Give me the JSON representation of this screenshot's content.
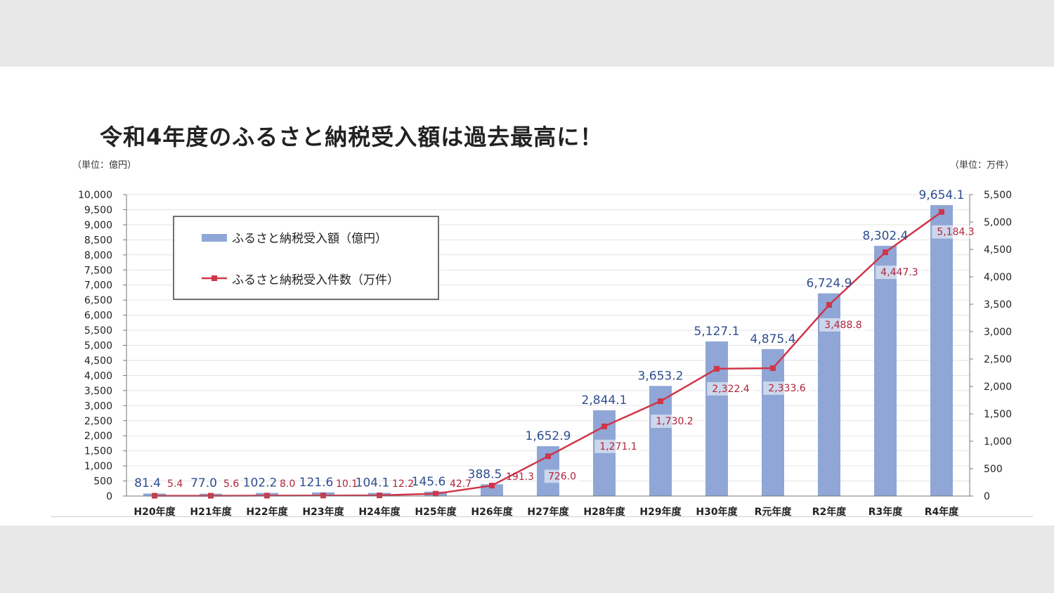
{
  "title": "令和4年度のふるさと納税受入額は過去最高に！",
  "chart_data": {
    "type": "bar",
    "title": "令和4年度のふるさと納税受入額は過去最高に！",
    "unit_left": "（単位：億円）",
    "unit_right": "（単位：万件）",
    "categories": [
      "H20年度",
      "H21年度",
      "H22年度",
      "H23年度",
      "H24年度",
      "H25年度",
      "H26年度",
      "H27年度",
      "H28年度",
      "H29年度",
      "H30年度",
      "R元年度",
      "R2年度",
      "R3年度",
      "R4年度"
    ],
    "series": [
      {
        "name": "ふるさと納税受入額（億円）",
        "type": "bar",
        "axis": "left",
        "color": "#8fa6d6",
        "label_color": "#2f4f8f",
        "values": [
          81.4,
          77.0,
          102.2,
          121.6,
          104.1,
          145.6,
          388.5,
          1652.9,
          2844.1,
          3653.2,
          5127.1,
          4875.4,
          6724.9,
          8302.4,
          9654.1
        ],
        "labels": [
          "81.4",
          "77.0",
          "102.2",
          "121.6",
          "104.1",
          "145.6",
          "388.5",
          "1,652.9",
          "2,844.1",
          "3,653.2",
          "5,127.1",
          "4,875.4",
          "6,724.9",
          "8,302.4",
          "9,654.1"
        ]
      },
      {
        "name": "ふるさと納税受入件数（万件）",
        "type": "line",
        "axis": "right",
        "color": "#d0354a",
        "label_color": "#b0233a",
        "values": [
          5.4,
          5.6,
          8.0,
          10.1,
          12.2,
          42.7,
          191.3,
          726.0,
          1271.1,
          1730.2,
          2322.4,
          2333.6,
          3488.8,
          4447.3,
          5184.3
        ],
        "labels": [
          "5.4",
          "5.6",
          "8.0",
          "10.1",
          "12.2",
          "42.7",
          "191.3",
          "726.0",
          "1,271.1",
          "1,730.2",
          "2,322.4",
          "2,333.6",
          "3,488.8",
          "4,447.3",
          "5,184.3"
        ]
      }
    ],
    "y_left": {
      "min": 0,
      "max": 10000,
      "step": 500,
      "tick_labels": [
        "0",
        "500",
        "1,000",
        "1,500",
        "2,000",
        "2,500",
        "3,000",
        "3,500",
        "4,000",
        "4,500",
        "5,000",
        "5,500",
        "6,000",
        "6,500",
        "7,000",
        "7,500",
        "8,000",
        "8,500",
        "9,000",
        "9,500",
        "10,000"
      ]
    },
    "y_right": {
      "min": 0,
      "max": 5500,
      "step": 500,
      "tick_labels": [
        "0",
        "500",
        "1,000",
        "1,500",
        "2,000",
        "2,500",
        "3,000",
        "3,500",
        "4,000",
        "4,500",
        "5,000",
        "5,500"
      ]
    },
    "grid": true,
    "legend_position": "top-left"
  }
}
